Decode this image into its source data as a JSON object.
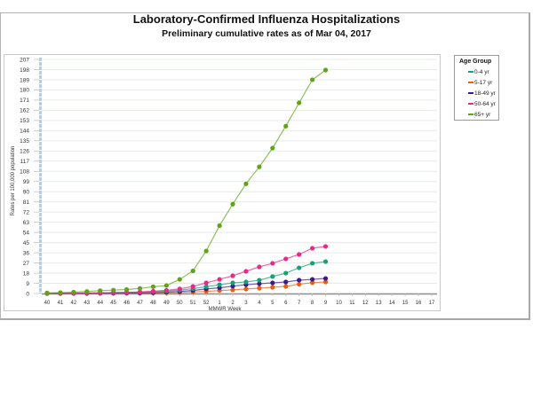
{
  "header": {
    "title": "Laboratory-Confirmed Influenza Hospitalizations",
    "subtitle": "Preliminary cumulative rates as of Mar 04, 2017"
  },
  "legend": {
    "title": "Age Group",
    "items": [
      {
        "label": "0-4 yr",
        "color": "#1a9e77"
      },
      {
        "label": "5-17 yr",
        "color": "#e7600f"
      },
      {
        "label": "18-49 yr",
        "color": "#3d1a8c"
      },
      {
        "label": "50-64 yr",
        "color": "#e7298a"
      },
      {
        "label": "65+ yr",
        "color": "#5fa318"
      }
    ]
  },
  "chart_data": {
    "type": "line",
    "title": "Laboratory-Confirmed Influenza Hospitalizations",
    "subtitle": "Preliminary cumulative rates as of Mar 04, 2017",
    "xlabel": "MMWR Week",
    "ylabel": "Rates per 100,000 population",
    "ylim": [
      0,
      207
    ],
    "yticks": [
      0,
      9,
      18,
      27,
      36,
      45,
      54,
      63,
      72,
      81,
      90,
      99,
      108,
      117,
      126,
      135,
      144,
      153,
      162,
      171,
      180,
      189,
      198,
      207
    ],
    "categories": [
      "40",
      "41",
      "42",
      "43",
      "44",
      "45",
      "46",
      "47",
      "48",
      "49",
      "50",
      "51",
      "52",
      "1",
      "2",
      "3",
      "4",
      "5",
      "6",
      "7",
      "8",
      "9",
      "10",
      "11",
      "12",
      "13",
      "14",
      "15",
      "16",
      "17"
    ],
    "grid": true,
    "legend_position": "right",
    "series": [
      {
        "name": "0-4 yr",
        "color": "#1a9e77",
        "values": [
          0.1,
          0.2,
          0.3,
          0.4,
          0.5,
          0.7,
          0.9,
          1.2,
          1.6,
          2.2,
          3.0,
          4.2,
          6.0,
          7.8,
          9.4,
          10.2,
          11.8,
          15.0,
          18.0,
          22.7,
          26.7,
          28.2
        ]
      },
      {
        "name": "5-17 yr",
        "color": "#e7600f",
        "values": [
          0.0,
          0.1,
          0.1,
          0.1,
          0.2,
          0.2,
          0.3,
          0.4,
          0.5,
          0.7,
          0.9,
          1.3,
          1.9,
          2.6,
          3.2,
          3.9,
          4.7,
          5.5,
          6.3,
          8.2,
          9.6,
          10.2
        ]
      },
      {
        "name": "18-49 yr",
        "color": "#3d1a8c",
        "values": [
          0.1,
          0.1,
          0.2,
          0.2,
          0.3,
          0.4,
          0.5,
          0.6,
          0.8,
          1.2,
          1.8,
          2.7,
          4.0,
          5.0,
          6.5,
          7.8,
          8.6,
          9.4,
          10.2,
          11.8,
          12.5,
          13.3
        ]
      },
      {
        "name": "50-64 yr",
        "color": "#e7298a",
        "values": [
          0.1,
          0.2,
          0.3,
          0.4,
          0.6,
          0.8,
          1.0,
          1.4,
          2.0,
          2.8,
          4.0,
          6.3,
          9.4,
          12.5,
          15.7,
          19.6,
          23.5,
          26.7,
          30.6,
          34.5,
          40.0,
          41.6
        ]
      },
      {
        "name": "65+ yr",
        "color": "#5fa318",
        "values": [
          0.5,
          0.8,
          1.2,
          1.8,
          2.5,
          3.0,
          3.5,
          4.5,
          6.0,
          7.0,
          12.5,
          20.0,
          37.6,
          60.0,
          79.0,
          97.0,
          112.0,
          128.6,
          148.0,
          168.6,
          189.0,
          197.6
        ]
      }
    ]
  }
}
